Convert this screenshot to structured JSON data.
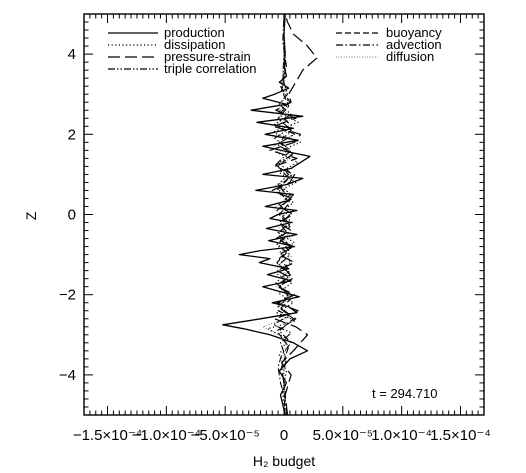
{
  "chart_data": {
    "type": "line",
    "xlabel": "H₂ budget",
    "ylabel": "Z",
    "xlim": [
      -0.00017,
      0.00017
    ],
    "ylim": [
      -5,
      5
    ],
    "x_ticks": [
      {
        "value": -0.00015,
        "label": "−1.5×10⁻⁴"
      },
      {
        "value": -0.0001,
        "label": "−1.0×10⁻⁴"
      },
      {
        "value": -5e-05,
        "label": "−5.0×10⁻⁵"
      },
      {
        "value": 0,
        "label": "0"
      },
      {
        "value": 5e-05,
        "label": "5.0×10⁻⁵"
      },
      {
        "value": 0.0001,
        "label": "1.0×10⁻⁴"
      },
      {
        "value": 0.00015,
        "label": "1.5×10⁻⁴"
      }
    ],
    "y_ticks": [
      -4,
      -2,
      0,
      2,
      4
    ],
    "annotation": "t = 294.710",
    "series": [
      {
        "name": "production",
        "style": "solid",
        "z": [
          -5,
          -4.5,
          -4.2,
          -3.9,
          -3.6,
          -3.4,
          -3.2,
          -3,
          -2.85,
          -2.75,
          -2.6,
          -2.45,
          -2.3,
          -2.2,
          -2.05,
          -1.9,
          -1.8,
          -1.65,
          -1.5,
          -1.35,
          -1.2,
          -1.1,
          -1,
          -0.9,
          -0.8,
          -0.65,
          -0.5,
          -0.35,
          -0.2,
          -0.1,
          0,
          0.1,
          0.2,
          0.35,
          0.5,
          0.6,
          0.75,
          0.9,
          1,
          1.15,
          1.3,
          1.45,
          1.55,
          1.7,
          1.85,
          2,
          2.15,
          2.3,
          2.45,
          2.6,
          2.75,
          2.9,
          3,
          3.15,
          3.3,
          3.45,
          3.7,
          4,
          4.5,
          5
        ],
        "x": [
          1e-06,
          -3e-06,
          2e-06,
          -4e-06,
          5e-06,
          2e-05,
          8e-06,
          -1.2e-05,
          -3.4e-05,
          -5.2e-05,
          -2e-05,
          1.1e-05,
          4e-06,
          -1e-05,
          1.3e-05,
          -6e-06,
          -1.8e-05,
          6e-06,
          -1.4e-05,
          4e-06,
          -2.1e-05,
          -1.2e-05,
          -3.8e-05,
          -2e-05,
          9e-06,
          -1.3e-05,
          1.1e-05,
          -1.5e-05,
          6e-06,
          -1.2e-05,
          -5e-06,
          1.1e-05,
          -1.6e-05,
          4e-06,
          8e-06,
          -2.4e-05,
          3e-06,
          1.6e-05,
          -1.8e-05,
          6e-06,
          1.4e-05,
          2.2e-05,
          5e-06,
          -1.8e-05,
          1.2e-05,
          -1.6e-05,
          8e-06,
          -2.3e-05,
          1.6e-05,
          -2.8e-05,
          2e-06,
          -1.8e-05,
          -8e-06,
          4e-06,
          -4e-06,
          2e-06,
          0,
          1e-06,
          0,
          1e-06
        ]
      },
      {
        "name": "dissipation",
        "style": "dotted",
        "z": [
          -5,
          -4.4,
          -3.9,
          -3.5,
          -3.1,
          -2.85,
          -2.65,
          -2.45,
          -2.2,
          -1.95,
          -1.7,
          -1.45,
          -1.2,
          -0.95,
          -0.7,
          -0.45,
          -0.2,
          0.05,
          0.3,
          0.55,
          0.8,
          1.05,
          1.3,
          1.55,
          1.8,
          2.05,
          2.3,
          2.55,
          2.8,
          3.1,
          3.5,
          4,
          4.5,
          5
        ],
        "x": [
          0,
          -1e-06,
          2e-06,
          -4e-06,
          3e-06,
          -1.4e-05,
          1e-05,
          -6e-06,
          8e-06,
          -5e-06,
          7e-06,
          -8e-06,
          6e-06,
          -4e-06,
          9e-06,
          -5e-06,
          7e-06,
          -3e-06,
          8e-06,
          -6e-06,
          1e-05,
          -4e-06,
          1.2e-05,
          -6e-06,
          1.4e-05,
          -1e-05,
          1.2e-05,
          -5e-06,
          4e-06,
          -2e-06,
          1e-06,
          0,
          0,
          0
        ]
      },
      {
        "name": "pressure-strain",
        "style": "long-dash",
        "z": [
          -5,
          -4.5,
          -4,
          -3.7,
          -3.4,
          -3.2,
          -3,
          -2.8,
          -2.6,
          -2.4,
          -2.2,
          -2,
          -1.8,
          -1.6,
          -1.4,
          -1.2,
          -1,
          -0.8,
          -0.6,
          -0.4,
          -0.2,
          0,
          0.2,
          0.4,
          0.6,
          0.8,
          1,
          1.2,
          1.4,
          1.6,
          1.8,
          2,
          2.2,
          2.4,
          2.6,
          2.8,
          3,
          3.3,
          3.6,
          3.9,
          4.2,
          4.5,
          4.8,
          5
        ],
        "x": [
          3e-06,
          1e-06,
          6e-06,
          -2e-06,
          8e-06,
          1.4e-05,
          2e-05,
          1e-05,
          -8e-06,
          1.2e-05,
          -6e-06,
          9e-06,
          -5e-06,
          7e-06,
          -6e-06,
          9e-06,
          -4e-06,
          8e-06,
          -7e-06,
          6e-06,
          -5e-06,
          8e-06,
          -4e-06,
          7e-06,
          -1e-05,
          5e-06,
          9e-06,
          -8e-06,
          1.1e-05,
          -1.2e-05,
          9e-06,
          1.4e-05,
          -9e-06,
          1e-05,
          -7e-06,
          6e-06,
          4e-06,
          1e-05,
          1.6e-05,
          2.8e-05,
          2e-05,
          8e-06,
          3e-06,
          1e-06
        ]
      },
      {
        "name": "triple correlation",
        "style": "dash-dot-dot",
        "z": [
          -5,
          -4.5,
          -4,
          -3.6,
          -3.2,
          -2.95,
          -2.75,
          -2.5,
          -2.25,
          -2,
          -1.75,
          -1.5,
          -1.25,
          -1,
          -0.75,
          -0.5,
          -0.25,
          0,
          0.25,
          0.5,
          0.75,
          1,
          1.25,
          1.5,
          1.75,
          2,
          2.25,
          2.5,
          2.75,
          3,
          3.4,
          4,
          4.5,
          5
        ],
        "x": [
          0,
          1e-06,
          -1e-06,
          2e-06,
          -3e-06,
          6e-06,
          -9e-06,
          5e-06,
          -6e-06,
          4e-06,
          -5e-06,
          6e-06,
          -4e-06,
          5e-06,
          -6e-06,
          4e-06,
          -3e-06,
          5e-06,
          -4e-06,
          6e-06,
          -5e-06,
          4e-06,
          -7e-06,
          8e-06,
          -6e-06,
          9e-06,
          -8e-06,
          6e-06,
          -4e-06,
          3e-06,
          -1e-06,
          0,
          0,
          0
        ]
      },
      {
        "name": "buoyancy",
        "style": "short-dash",
        "z": [
          -5,
          -4.4,
          -3.8,
          -3.3,
          -2.9,
          -2.6,
          -2.4,
          -2.1,
          -1.8,
          -1.5,
          -1.2,
          -0.9,
          -0.6,
          -0.3,
          0,
          0.3,
          0.6,
          0.9,
          1.2,
          1.5,
          1.8,
          2.1,
          2.4,
          2.7,
          3.1,
          3.6,
          4.2,
          5
        ],
        "x": [
          0,
          1e-06,
          -2e-06,
          4e-06,
          -6e-06,
          1e-05,
          -5e-06,
          6e-06,
          -4e-06,
          5e-06,
          -6e-06,
          4e-06,
          -3e-06,
          5e-06,
          -4e-06,
          5e-06,
          -6e-06,
          4e-06,
          -5e-06,
          7e-06,
          -4e-06,
          6e-06,
          -5e-06,
          4e-06,
          -2e-06,
          1e-06,
          0,
          0
        ]
      },
      {
        "name": "advection",
        "style": "dash-dot",
        "z": [
          -5,
          -4.6,
          -4.2,
          -3.8,
          -3.5,
          -3.2,
          -2.9,
          -2.6,
          -2.3,
          -2,
          -1.7,
          -1.4,
          -1.1,
          -0.8,
          -0.5,
          -0.2,
          0.1,
          0.4,
          0.7,
          1,
          1.3,
          1.6,
          1.9,
          2.2,
          2.5,
          2.8,
          3.2,
          3.7,
          4.3,
          5
        ],
        "x": [
          2e-06,
          1e-06,
          -3e-06,
          -5e-06,
          -2e-06,
          6e-06,
          -4e-06,
          8e-06,
          -5e-06,
          6e-06,
          -7e-06,
          5e-06,
          -4e-06,
          6e-06,
          -5e-06,
          4e-06,
          -6e-06,
          5e-06,
          -4e-06,
          7e-06,
          -5e-06,
          6e-06,
          -8e-06,
          7e-06,
          -4e-06,
          5e-06,
          -3e-06,
          2e-06,
          -1e-06,
          0
        ]
      },
      {
        "name": "diffusion",
        "style": "fine-dotted",
        "z": [
          -5,
          -4.5,
          -4,
          -3.6,
          -3.3,
          -3,
          -2.8,
          -2.55,
          -2.3,
          -2.05,
          -1.8,
          -1.55,
          -1.3,
          -1.05,
          -0.8,
          -0.55,
          -0.3,
          -0.05,
          0.2,
          0.45,
          0.7,
          0.95,
          1.2,
          1.45,
          1.7,
          1.95,
          2.2,
          2.45,
          2.7,
          3,
          3.4,
          4,
          4.5,
          5
        ],
        "x": [
          0,
          0,
          1e-06,
          -2e-06,
          3e-06,
          -4e-06,
          -1.8e-05,
          6e-06,
          -5e-06,
          7e-06,
          -6e-06,
          5e-06,
          -7e-06,
          6e-06,
          -5e-06,
          7e-06,
          -6e-06,
          5e-06,
          -7e-06,
          6e-06,
          -8e-06,
          7e-06,
          -6e-06,
          8e-06,
          -9e-06,
          7e-06,
          -6e-06,
          5e-06,
          -4e-06,
          2e-06,
          -1e-06,
          0,
          0,
          0
        ]
      }
    ]
  }
}
